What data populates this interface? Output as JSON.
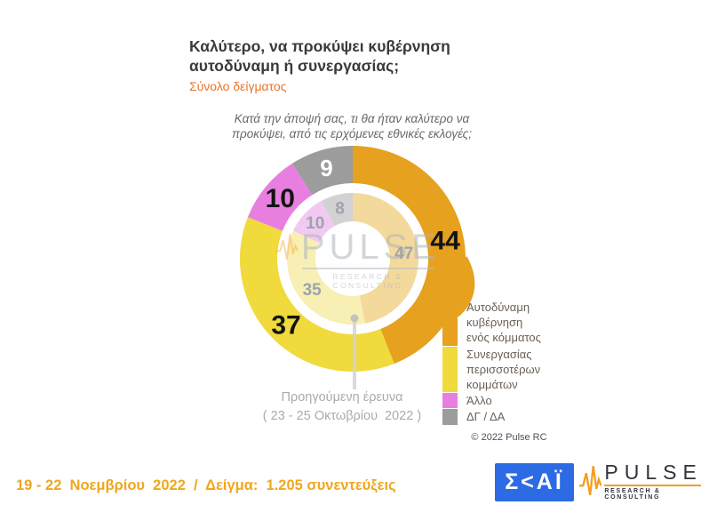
{
  "header": {
    "title_line1": "Καλύτερο, να προκύψει κυβέρνηση",
    "title_line2": "αυτοδύναμη ή συνεργασίας;",
    "subtitle": "Σύνολο δείγματος",
    "question_line1": "Κατά την άποψή σας, τι θα ήταν καλύτερο να",
    "question_line2": "προκύψει, από τις ερχόμενες εθνικές εκλογές;"
  },
  "chart_data": {
    "type": "pie",
    "variant": "nested-donut",
    "start_angle_deg": 0,
    "direction": "clockwise",
    "categories": [
      "Αυτοδύναμη κυβέρνηση ενός κόμματος",
      "Συνεργασίας περισσοτέρων κομμάτων",
      "Άλλο",
      "ΔΓ / ΔΑ"
    ],
    "series": [
      {
        "name": "19 - 22 Νοεμβρίου 2022",
        "ring": "outer",
        "values": [
          44,
          37,
          10,
          9
        ]
      },
      {
        "name": "Προηγούμενη έρευνα (23 - 25 Οκτωβρίου 2022)",
        "ring": "inner",
        "values": [
          47,
          35,
          10,
          8
        ]
      }
    ],
    "colors_outer": [
      "#e6a11f",
      "#f0da3c",
      "#e87fe0",
      "#9c9c9c"
    ],
    "colors_inner": [
      "#f3d99c",
      "#f7efb4",
      "#f2c9f1",
      "#d2d2d2"
    ],
    "label_colors_outer": [
      "#141414",
      "#141414",
      "#141414",
      "#ffffff"
    ],
    "label_sizes_outer": [
      30,
      30,
      30,
      26
    ],
    "label_color_inner": "#9ca4ae",
    "label_size_inner": 19,
    "legend_position": "right"
  },
  "legend": {
    "items": [
      {
        "label": "Αυτοδύναμη\nκυβέρνηση\nενός κόμματος",
        "color": "#e6a11f"
      },
      {
        "label": "Συνεργασίας\nπερισσοτέρων\nκομμάτων",
        "color": "#f0da3c"
      },
      {
        "label": "Άλλο",
        "color": "#e87fe0"
      },
      {
        "label": "ΔΓ / ΔΑ",
        "color": "#9c9c9c"
      }
    ]
  },
  "callout": {
    "line1": "Προηγούμενη έρευνα",
    "line2": "( 23 - 25 Οκτωβρίου  2022 )"
  },
  "watermark": {
    "brand": "PULSE",
    "tagline": "RESEARCH & CONSULTING"
  },
  "footer": {
    "fieldwork": "19 - 22  Νοεμβρίου  2022  /  Δείγμα:  1.205 συνεντεύξεις",
    "copyright": "© 2022 Pulse RC"
  },
  "logos": {
    "skai_text": "Σ<ΑΪ",
    "pulse_brand": "PULSE",
    "pulse_tagline": "RESEARCH & CONSULTING"
  }
}
